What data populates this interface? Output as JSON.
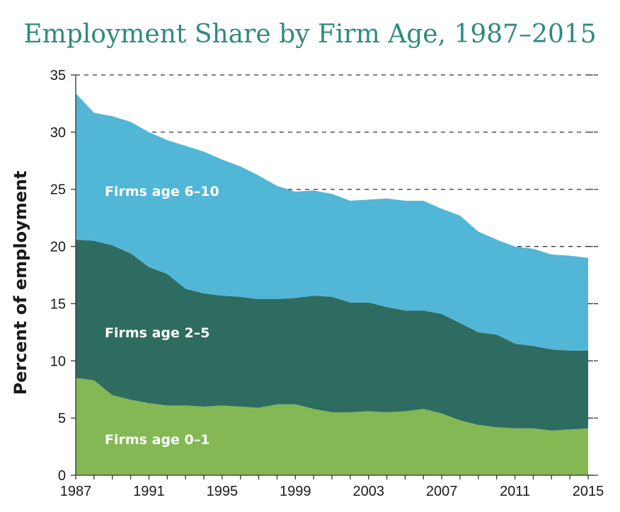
{
  "chart_data": {
    "type": "area",
    "stacked": true,
    "title": "Employment Share by Firm Age, 1987–2015",
    "xlabel": "",
    "ylabel": "Percent of employment",
    "ylim": [
      0,
      35
    ],
    "yticks": [
      0,
      5,
      10,
      15,
      20,
      25,
      30,
      35
    ],
    "xlim": [
      1987,
      2015
    ],
    "xticks": [
      1987,
      1991,
      1995,
      1999,
      2003,
      2007,
      2011,
      2015
    ],
    "grid": "dashed horizontal",
    "x": [
      1987,
      1988,
      1989,
      1990,
      1991,
      1992,
      1993,
      1994,
      1995,
      1996,
      1997,
      1998,
      1999,
      2000,
      2001,
      2002,
      2003,
      2004,
      2005,
      2006,
      2007,
      2008,
      2009,
      2010,
      2011,
      2012,
      2013,
      2014,
      2015
    ],
    "series": [
      {
        "name": "Firms age 0–1",
        "color": "#84b854",
        "values": [
          8.5,
          8.3,
          7.0,
          6.6,
          6.3,
          6.1,
          6.1,
          6.0,
          6.1,
          6.0,
          5.9,
          6.2,
          6.2,
          5.8,
          5.5,
          5.5,
          5.6,
          5.5,
          5.6,
          5.8,
          5.4,
          4.8,
          4.4,
          4.2,
          4.1,
          4.1,
          3.9,
          4.0,
          4.1
        ]
      },
      {
        "name": "Firms age 2–5",
        "color": "#2e6b61",
        "values": [
          12.1,
          12.2,
          13.1,
          12.8,
          11.9,
          11.5,
          10.2,
          9.9,
          9.6,
          9.6,
          9.5,
          9.2,
          9.3,
          9.9,
          10.1,
          9.6,
          9.5,
          9.2,
          8.8,
          8.6,
          8.7,
          8.5,
          8.1,
          8.1,
          7.4,
          7.2,
          7.1,
          6.9,
          6.8
        ]
      },
      {
        "name": "Firms age 6–10",
        "color": "#52b6d6",
        "values": [
          12.8,
          11.2,
          11.3,
          11.5,
          11.8,
          11.7,
          12.5,
          12.4,
          11.9,
          11.4,
          10.8,
          9.9,
          9.3,
          9.2,
          9.0,
          8.9,
          9.0,
          9.5,
          9.6,
          9.6,
          9.2,
          9.4,
          8.8,
          8.3,
          8.5,
          8.5,
          8.3,
          8.3,
          8.1
        ]
      }
    ]
  }
}
